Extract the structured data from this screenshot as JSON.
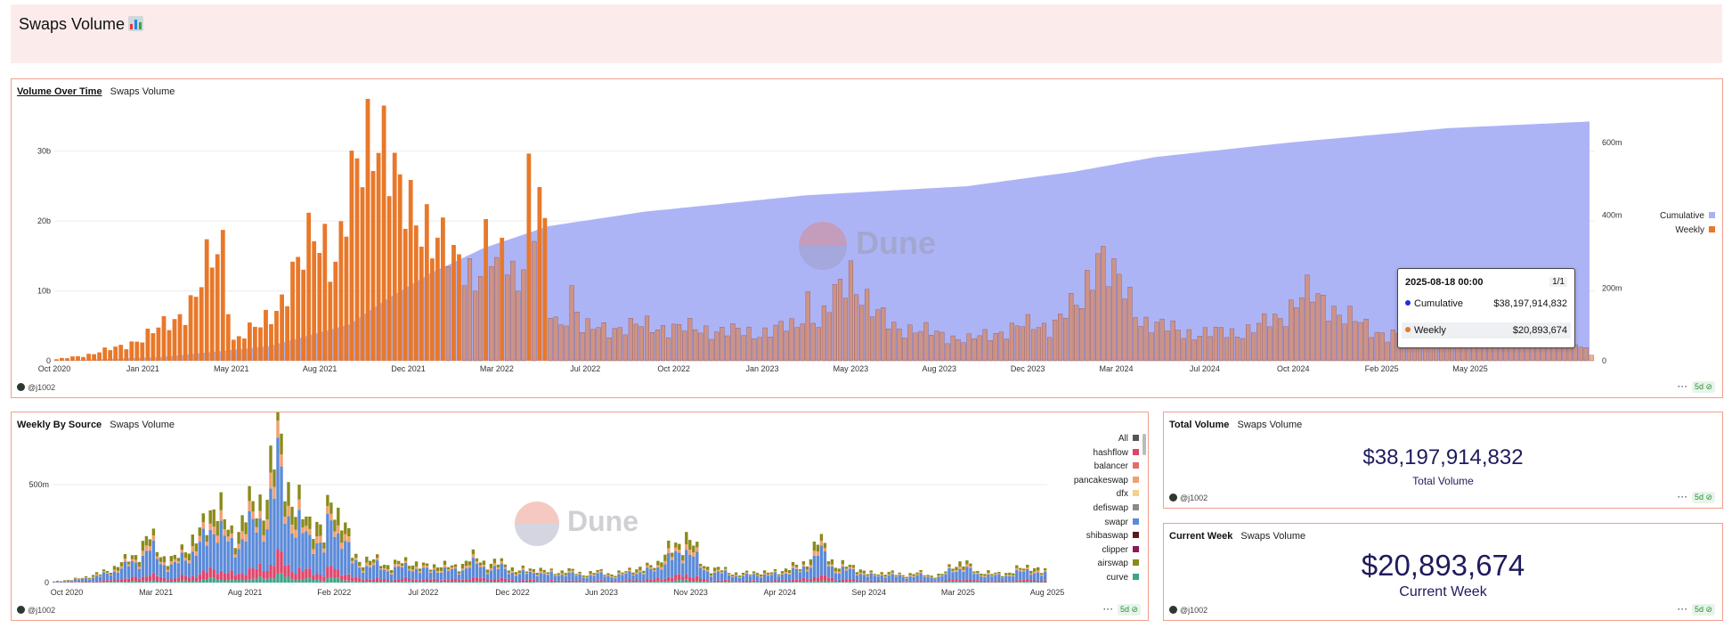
{
  "page": {
    "title": "Swaps Volume",
    "title_icon": "bar-chart-emoji-icon"
  },
  "colors": {
    "accent": "#f0a08c",
    "cumulative": "#a9b0f5",
    "weekly": "#e8782a",
    "big_value": "#1e1b5e"
  },
  "volume_over_time": {
    "tab_active": "Volume Over Time",
    "tab_sub": "Swaps Volume",
    "user": "@j1002",
    "age_badge": "5d",
    "more_label": "···",
    "watermark": "Dune",
    "legend": [
      {
        "label": "Cumulative",
        "color": "#a9b0f5"
      },
      {
        "label": "Weekly",
        "color": "#e8782a"
      }
    ],
    "tooltip": {
      "date": "2025-08-18 00:00",
      "page": "1/1",
      "rows": [
        {
          "label": "Cumulative",
          "value": "$38,197,914,832",
          "color": "#1f2ee0"
        },
        {
          "label": "Weekly",
          "value": "$20,893,674",
          "color": "#e8782a"
        }
      ]
    }
  },
  "weekly_by_source": {
    "tab_active": "Weekly By Source",
    "tab_sub": "Swaps Volume",
    "user": "@j1002",
    "age_badge": "5d",
    "more_label": "···",
    "watermark": "Dune",
    "legend": [
      {
        "label": "All",
        "color": "#555555"
      },
      {
        "label": "hashflow",
        "color": "#e0446a"
      },
      {
        "label": "balancer",
        "color": "#e86a6a"
      },
      {
        "label": "pancakeswap",
        "color": "#f0a070"
      },
      {
        "label": "dfx",
        "color": "#f5d08a"
      },
      {
        "label": "defiswap",
        "color": "#8a8a8a"
      },
      {
        "label": "swapr",
        "color": "#5b8ad8"
      },
      {
        "label": "shibaswap",
        "color": "#5a1a1a"
      },
      {
        "label": "clipper",
        "color": "#8a1a5a"
      },
      {
        "label": "airswap",
        "color": "#8a8a1a"
      },
      {
        "label": "curve",
        "color": "#3aa58a"
      }
    ]
  },
  "total_volume": {
    "tab_active": "Total Volume",
    "tab_sub": "Swaps Volume",
    "value": "$38,197,914,832",
    "label": "Total Volume",
    "user": "@j1002",
    "age_badge": "5d",
    "more_label": "···"
  },
  "current_week": {
    "tab_active": "Current Week",
    "tab_sub": "Swaps Volume",
    "value": "$20,893,674",
    "label": "Current Week",
    "user": "@j1002",
    "age_badge": "5d",
    "more_label": "···"
  },
  "chart_data": [
    {
      "type": "bar",
      "subtype": "bar-with-area",
      "x_tick_labels": [
        "Oct 2020",
        "Jan 2021",
        "May 2021",
        "Aug 2021",
        "Dec 2021",
        "Mar 2022",
        "Jul 2022",
        "Oct 2022",
        "Jan 2023",
        "May 2023",
        "Aug 2023",
        "Dec 2023",
        "Mar 2024",
        "Jul 2024",
        "Oct 2024",
        "Feb 2025",
        "May 2025"
      ],
      "y_left_ticks": [
        "0",
        "10b",
        "20b",
        "30b"
      ],
      "y_left_range": [
        0,
        38000000000
      ],
      "y_right_ticks": [
        "0",
        "200m",
        "400m",
        "600m"
      ],
      "y_right_range": [
        0,
        730000000
      ],
      "grid": true,
      "legend_position": "right",
      "series": [
        {
          "name": "Weekly",
          "kind": "bar",
          "color": "#e8782a",
          "axis": "left",
          "anchors": [
            [
              0,
              0.2
            ],
            [
              6,
              0.9
            ],
            [
              12,
              2
            ],
            [
              18,
              4
            ],
            [
              22,
              6
            ],
            [
              26,
              9
            ],
            [
              28,
              13
            ],
            [
              31,
              17
            ],
            [
              33,
              3
            ],
            [
              38,
              5
            ],
            [
              42,
              9
            ],
            [
              44,
              12
            ],
            [
              46,
              14
            ],
            [
              48,
              19
            ],
            [
              50,
              18
            ],
            [
              52,
              14
            ],
            [
              54,
              20
            ],
            [
              56,
              27
            ],
            [
              58,
              33
            ],
            [
              59,
              36
            ],
            [
              60,
              35
            ],
            [
              62,
              28
            ],
            [
              64,
              22
            ],
            [
              68,
              22
            ],
            [
              70,
              18
            ],
            [
              72,
              16
            ],
            [
              74,
              14
            ],
            [
              76,
              15
            ],
            [
              78,
              12
            ],
            [
              80,
              16
            ],
            [
              82,
              13
            ],
            [
              84,
              16
            ],
            [
              86,
              11
            ],
            [
              88,
              25
            ],
            [
              89,
              18
            ],
            [
              90,
              24
            ],
            [
              92,
              7
            ],
            [
              94,
              5
            ],
            [
              96,
              10
            ],
            [
              98,
              4.5
            ],
            [
              110,
              5
            ],
            [
              120,
              4.5
            ],
            [
              130,
              4
            ],
            [
              138,
              5
            ],
            [
              140,
              9
            ],
            [
              142,
              5
            ],
            [
              148,
              13
            ],
            [
              152,
              7
            ],
            [
              156,
              5
            ],
            [
              170,
              3
            ],
            [
              180,
              5
            ],
            [
              185,
              5
            ],
            [
              188,
              7
            ],
            [
              191,
              8
            ],
            [
              194,
              17
            ],
            [
              197,
              12
            ],
            [
              202,
              6
            ],
            [
              210,
              4
            ],
            [
              220,
              4
            ],
            [
              228,
              6
            ],
            [
              232,
              10
            ],
            [
              236,
              8
            ],
            [
              240,
              7
            ],
            [
              245,
              4
            ],
            [
              250,
              4
            ],
            [
              260,
              5
            ],
            [
              265,
              7
            ],
            [
              268,
              9
            ],
            [
              272,
              8
            ],
            [
              275,
              9
            ],
            [
              280,
              5
            ],
            [
              286,
              1
            ]
          ]
        },
        {
          "name": "Cumulative",
          "kind": "area",
          "color": "#a9b0f5",
          "axis": "right",
          "anchors": [
            [
              0,
              0
            ],
            [
              20,
              10000000
            ],
            [
              40,
              40000000
            ],
            [
              55,
              100000000
            ],
            [
              62,
              170000000
            ],
            [
              70,
              240000000
            ],
            [
              80,
              310000000
            ],
            [
              92,
              370000000
            ],
            [
              110,
              410000000
            ],
            [
              140,
              455000000
            ],
            [
              170,
              480000000
            ],
            [
              190,
              520000000
            ],
            [
              205,
              560000000
            ],
            [
              230,
              600000000
            ],
            [
              260,
              640000000
            ],
            [
              286,
              658000000
            ]
          ]
        }
      ]
    },
    {
      "type": "bar",
      "subtype": "stacked",
      "x_tick_labels": [
        "Oct 2020",
        "Mar 2021",
        "Aug 2021",
        "Feb 2022",
        "Jul 2022",
        "Dec 2022",
        "Jun 2023",
        "Nov 2023",
        "Apr 2024",
        "Sep 2024",
        "Mar 2025",
        "Aug 2025"
      ],
      "y_ticks": [
        "0",
        "500m"
      ],
      "y_range": [
        0,
        760000000
      ],
      "grid": true,
      "legend_position": "right",
      "total_anchors": [
        [
          0,
          0.005
        ],
        [
          10,
          0.03
        ],
        [
          20,
          0.1
        ],
        [
          26,
          0.22
        ],
        [
          30,
          0.15
        ],
        [
          34,
          0.12
        ],
        [
          38,
          0.18
        ],
        [
          40,
          0.25
        ],
        [
          45,
          0.38
        ],
        [
          50,
          0.27
        ],
        [
          56,
          0.35
        ],
        [
          58,
          0.45
        ],
        [
          62,
          0.6
        ],
        [
          63,
          0.72
        ],
        [
          65,
          0.55
        ],
        [
          68,
          0.42
        ],
        [
          72,
          0.3
        ],
        [
          76,
          0.25
        ],
        [
          78,
          0.5
        ],
        [
          80,
          0.35
        ],
        [
          84,
          0.15
        ],
        [
          90,
          0.1
        ],
        [
          100,
          0.1
        ],
        [
          110,
          0.08
        ],
        [
          120,
          0.12
        ],
        [
          130,
          0.07
        ],
        [
          150,
          0.05
        ],
        [
          160,
          0.05
        ],
        [
          170,
          0.1
        ],
        [
          178,
          0.25
        ],
        [
          182,
          0.1
        ],
        [
          190,
          0.05
        ],
        [
          200,
          0.05
        ],
        [
          210,
          0.08
        ],
        [
          215,
          0.2
        ],
        [
          220,
          0.1
        ],
        [
          230,
          0.05
        ],
        [
          250,
          0.04
        ],
        [
          256,
          0.12
        ],
        [
          260,
          0.05
        ],
        [
          270,
          0.05
        ],
        [
          275,
          0.1
        ],
        [
          278,
          0.05
        ]
      ],
      "stack_shares": [
        {
          "name": "curve",
          "share": 0.05
        },
        {
          "name": "hashflow",
          "share": 0.12
        },
        {
          "name": "swapr",
          "share": 0.55
        },
        {
          "name": "pancakeswap",
          "share": 0.1
        },
        {
          "name": "airswap",
          "share": 0.18
        }
      ]
    }
  ]
}
